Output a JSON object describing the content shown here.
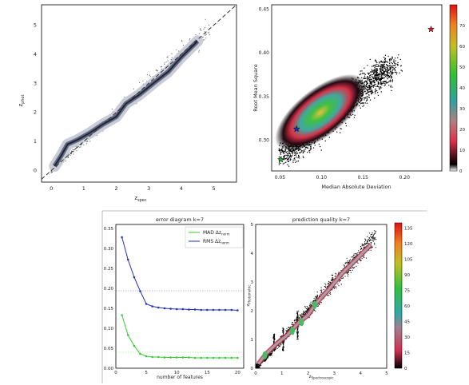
{
  "chart_data": [
    {
      "type": "scatter",
      "id": "zphot-vs-zspec",
      "xlabel": "z_spec",
      "ylabel": "z_phot",
      "xlim": [
        -0.3,
        5.7
      ],
      "ylim": [
        -0.4,
        5.7
      ],
      "xticks": [
        "0",
        "1",
        "2",
        "3",
        "4",
        "5"
      ],
      "yticks": [
        "0",
        "1",
        "2",
        "3",
        "4",
        "5"
      ],
      "diagonal": true,
      "ridge": [
        [
          0.1,
          0.15
        ],
        [
          0.3,
          0.5
        ],
        [
          0.5,
          0.9
        ],
        [
          0.8,
          1.05
        ],
        [
          1.2,
          1.3
        ],
        [
          1.6,
          1.6
        ],
        [
          2.0,
          1.85
        ],
        [
          2.3,
          2.3
        ],
        [
          2.7,
          2.6
        ],
        [
          3.2,
          3.05
        ],
        [
          3.6,
          3.4
        ],
        [
          4.0,
          3.9
        ],
        [
          4.5,
          4.45
        ]
      ],
      "colors": {
        "contour": "#4a5068",
        "fill": "#c9ccd6",
        "points": "#666666",
        "diagonal": "#333333"
      }
    },
    {
      "type": "heatmap",
      "id": "rms-vs-mad",
      "xlabel": "Median Absolute Deviation",
      "ylabel": "Root Mean Square",
      "xlim": [
        0.04,
        0.245
      ],
      "ylim": [
        0.265,
        0.455
      ],
      "xticks": [
        "0.05",
        "0.10",
        "0.15",
        "0.20"
      ],
      "yticks": [
        "0.30",
        "0.35",
        "0.40",
        "0.45"
      ],
      "colorbar": {
        "min": 0,
        "max": 80,
        "ticks": [
          "0",
          "10",
          "20",
          "30",
          "40",
          "50",
          "60",
          "70"
        ]
      },
      "markers": [
        {
          "x": 0.232,
          "y": 0.427,
          "color": "#d42020",
          "symbol": "star"
        },
        {
          "x": 0.07,
          "y": 0.313,
          "color": "#2030c0",
          "symbol": "star"
        },
        {
          "x": 0.051,
          "y": 0.278,
          "color": "#30b030",
          "symbol": "star"
        }
      ]
    },
    {
      "type": "line",
      "id": "error-diagram",
      "title": "error diagram k=7",
      "xlabel": "number of features",
      "xlim": [
        0,
        21
      ],
      "ylim": [
        0,
        0.36
      ],
      "xticks": [
        "0",
        "5",
        "10",
        "15",
        "20"
      ],
      "yticks": [
        "0.00",
        "0.05",
        "0.10",
        "0.15",
        "0.20",
        "0.25",
        "0.30",
        "0.35"
      ],
      "x": [
        1,
        2,
        3,
        4,
        5,
        6,
        7,
        8,
        9,
        10,
        11,
        12,
        13,
        14,
        15,
        16,
        17,
        18,
        19,
        20
      ],
      "legend_position": "top-right",
      "series": [
        {
          "name": "MAD Δz_norm",
          "color": "#33cc33",
          "values": [
            0.133,
            0.083,
            0.056,
            0.036,
            0.03,
            0.028,
            0.028,
            0.027,
            0.027,
            0.027,
            0.027,
            0.027,
            0.026,
            0.026,
            0.026,
            0.026,
            0.026,
            0.026,
            0.026,
            0.026
          ],
          "reference": 0.04
        },
        {
          "name": "RMS Δz_norm",
          "color": "#2233bb",
          "values": [
            0.328,
            0.272,
            0.228,
            0.193,
            0.161,
            0.155,
            0.152,
            0.15,
            0.149,
            0.148,
            0.148,
            0.147,
            0.147,
            0.146,
            0.146,
            0.146,
            0.146,
            0.146,
            0.146,
            0.145
          ],
          "reference": 0.194
        }
      ]
    },
    {
      "type": "heatmap",
      "id": "prediction-quality",
      "title": "prediction quality k=7",
      "xlabel": "z_Spectroscopic",
      "ylabel": "z_Photometric",
      "xlim": [
        0,
        5
      ],
      "ylim": [
        0,
        5
      ],
      "xticks": [
        "0",
        "1",
        "2",
        "3",
        "4",
        "5"
      ],
      "yticks": [
        "0",
        "1",
        "2",
        "3",
        "4",
        "5"
      ],
      "colorbar": {
        "min": 0,
        "max": 140,
        "ticks": [
          "0",
          "15",
          "30",
          "45",
          "60",
          "75",
          "90",
          "105",
          "120",
          "135"
        ]
      }
    }
  ]
}
